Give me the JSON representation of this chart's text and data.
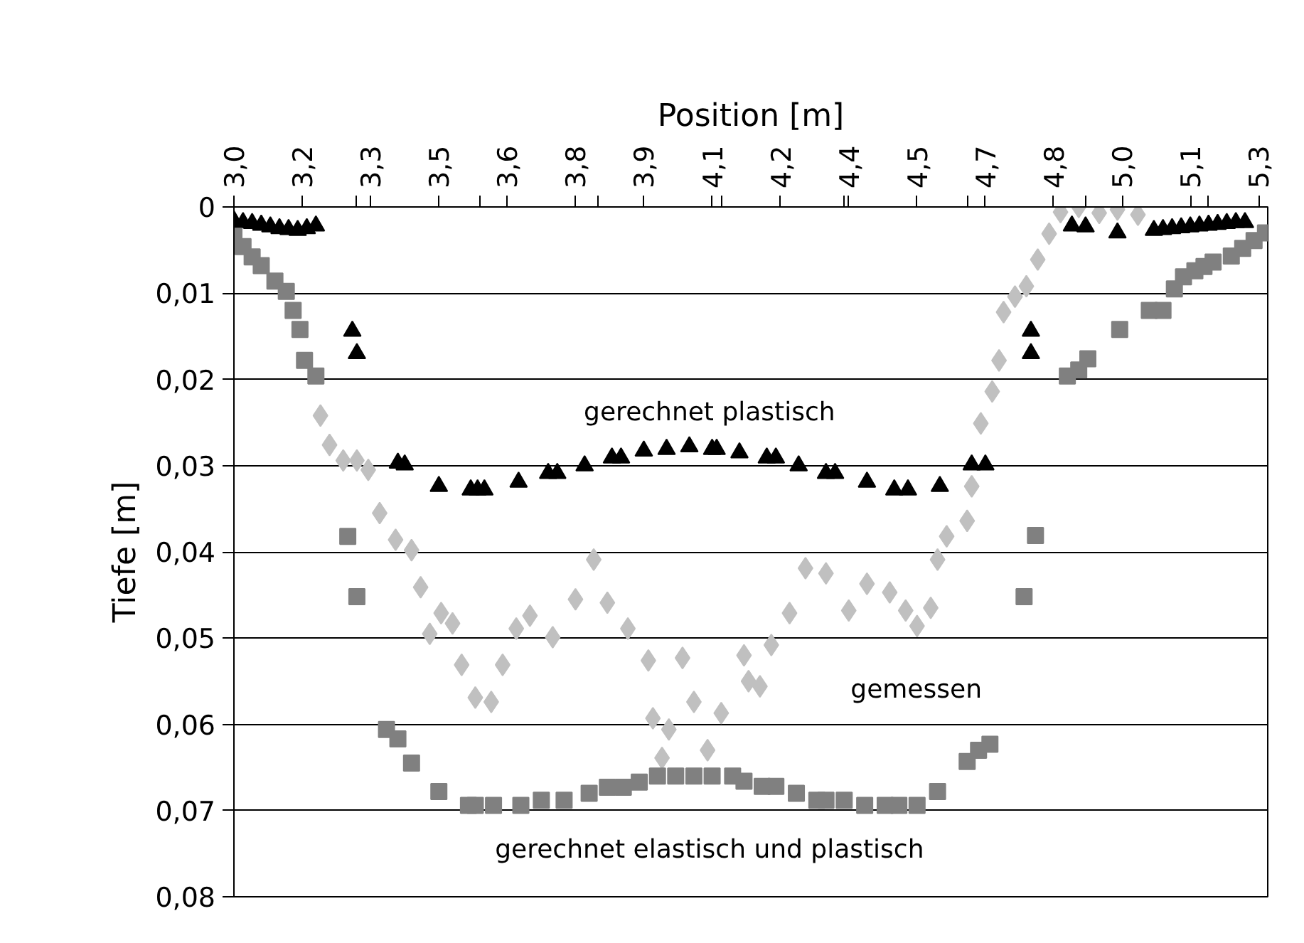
{
  "chart_data": {
    "type": "scatter",
    "xlabel": "Position [m]",
    "ylabel": "Tiefe [m]",
    "xlim": [
      3.0,
      5.27
    ],
    "ylim": [
      0.08,
      0
    ],
    "xticks": [
      {
        "value": 3.0,
        "label": "3,0"
      },
      {
        "value": 3.15,
        "label": "3,2"
      },
      {
        "value": 3.3,
        "label": "3,3"
      },
      {
        "value": 3.45,
        "label": "3,5"
      },
      {
        "value": 3.6,
        "label": "3,6"
      },
      {
        "value": 3.75,
        "label": "3,8"
      },
      {
        "value": 3.9,
        "label": "3,9"
      },
      {
        "value": 4.05,
        "label": "4,1"
      },
      {
        "value": 4.2,
        "label": "4,2"
      },
      {
        "value": 4.35,
        "label": "4,4"
      },
      {
        "value": 4.5,
        "label": "4,5"
      },
      {
        "value": 4.65,
        "label": "4,7"
      },
      {
        "value": 4.8,
        "label": "4,8"
      },
      {
        "value": 4.95,
        "label": "5,0"
      },
      {
        "value": 5.1,
        "label": "5,1"
      },
      {
        "value": 5.25,
        "label": "5,3"
      },
      {
        "value": 3.27,
        "label": null
      },
      {
        "value": 3.54,
        "label": null
      },
      {
        "value": 3.8,
        "label": null
      },
      {
        "value": 4.07,
        "label": null
      },
      {
        "value": 4.34,
        "label": null
      },
      {
        "value": 4.61,
        "label": null
      },
      {
        "value": 4.87,
        "label": null
      },
      {
        "value": 5.14,
        "label": null
      }
    ],
    "yticks": [
      0,
      {
        "value": 0.01,
        "label": "0,01"
      },
      {
        "value": 0.02,
        "label": "0,02"
      },
      {
        "value": 0.03,
        "label": "0,03"
      },
      {
        "value": 0.04,
        "label": "0,04"
      },
      {
        "value": 0.05,
        "label": "0,05"
      },
      {
        "value": 0.06,
        "label": "0,06"
      },
      {
        "value": 0.07,
        "label": "0,07"
      },
      {
        "value": 0.08,
        "label": "0,08"
      }
    ],
    "grid": "y",
    "series": [
      {
        "name": "gemessen",
        "color": "#c0c0c0",
        "marker": "diamond",
        "x": [
          3.19,
          3.21,
          3.24,
          3.27,
          3.295,
          3.32,
          3.355,
          3.39,
          3.41,
          3.43,
          3.455,
          3.48,
          3.5,
          3.53,
          3.565,
          3.59,
          3.62,
          3.65,
          3.7,
          3.75,
          3.79,
          3.82,
          3.865,
          3.91,
          3.92,
          3.94,
          3.955,
          3.985,
          4.01,
          4.04,
          4.07,
          4.12,
          4.13,
          4.155,
          4.18,
          4.22,
          4.255,
          4.3,
          4.35,
          4.39,
          4.44,
          4.475,
          4.5,
          4.53,
          4.545,
          4.565,
          4.61,
          4.62,
          4.64,
          4.665,
          4.68,
          4.69,
          4.715,
          4.74,
          4.765,
          4.79,
          4.815,
          4.855,
          4.9,
          4.94,
          4.985
        ],
        "values": [
          0.0242,
          0.0276,
          0.0294,
          0.0294,
          0.0305,
          0.0355,
          0.0386,
          0.0398,
          0.0441,
          0.0495,
          0.0471,
          0.0483,
          0.0531,
          0.0569,
          0.0574,
          0.0531,
          0.0489,
          0.0474,
          0.0499,
          0.0455,
          0.0409,
          0.0459,
          0.0489,
          0.0526,
          0.0593,
          0.0639,
          0.0606,
          0.0523,
          0.0574,
          0.063,
          0.0587,
          0.052,
          0.055,
          0.0556,
          0.0508,
          0.0471,
          0.0419,
          0.0425,
          0.0468,
          0.0437,
          0.0447,
          0.0468,
          0.0486,
          0.0465,
          0.0409,
          0.0382,
          0.0364,
          0.0324,
          0.0251,
          0.0214,
          0.0178,
          0.0122,
          0.0104,
          0.0092,
          0.0061,
          0.0031,
          0.0006,
          0.0,
          0.0007,
          0.0003,
          0.0009
        ]
      },
      {
        "name": "gerechnet plastisch",
        "color": "#000000",
        "marker": "triangle",
        "x": [
          3.0,
          3.02,
          3.04,
          3.06,
          3.08,
          3.1,
          3.12,
          3.14,
          3.16,
          3.18,
          3.26,
          3.27,
          3.36,
          3.375,
          3.45,
          3.52,
          3.535,
          3.55,
          3.625,
          3.69,
          3.71,
          3.77,
          3.83,
          3.85,
          3.9,
          3.95,
          4.0,
          4.05,
          4.06,
          4.11,
          4.17,
          4.19,
          4.24,
          4.3,
          4.32,
          4.39,
          4.45,
          4.48,
          4.55,
          4.62,
          4.65,
          4.75,
          4.75,
          4.84,
          4.87,
          4.94,
          5.02,
          5.04,
          5.06,
          5.08,
          5.1,
          5.12,
          5.14,
          5.16,
          5.18,
          5.2,
          5.22
        ],
        "values": [
          0.0016,
          0.0018,
          0.0019,
          0.0021,
          0.0023,
          0.0025,
          0.0026,
          0.0027,
          0.0025,
          0.0022,
          0.0144,
          0.017,
          0.0297,
          0.0299,
          0.0324,
          0.0328,
          0.0328,
          0.0328,
          0.0319,
          0.0309,
          0.0309,
          0.03,
          0.0291,
          0.0291,
          0.0283,
          0.0281,
          0.0278,
          0.0281,
          0.0281,
          0.0285,
          0.0291,
          0.0291,
          0.03,
          0.0309,
          0.0309,
          0.0319,
          0.0328,
          0.0328,
          0.0324,
          0.0299,
          0.0299,
          0.0144,
          0.017,
          0.0022,
          0.0023,
          0.003,
          0.0027,
          0.0026,
          0.0025,
          0.0024,
          0.0023,
          0.0022,
          0.0021,
          0.002,
          0.0019,
          0.0018,
          0.0018
        ]
      },
      {
        "name": "gerechnet elastisch und plastisch",
        "color": "#808080",
        "marker": "square",
        "x": [
          3.0,
          3.02,
          3.04,
          3.06,
          3.09,
          3.115,
          3.13,
          3.145,
          3.155,
          3.18,
          3.25,
          3.27,
          3.335,
          3.36,
          3.39,
          3.45,
          3.515,
          3.53,
          3.57,
          3.63,
          3.675,
          3.725,
          3.78,
          3.82,
          3.855,
          3.89,
          3.93,
          3.97,
          4.01,
          4.05,
          4.095,
          4.12,
          4.16,
          4.19,
          4.235,
          4.28,
          4.3,
          4.34,
          4.385,
          4.43,
          4.46,
          4.5,
          4.545,
          4.61,
          4.635,
          4.66,
          4.735,
          4.76,
          4.83,
          4.855,
          4.875,
          4.945,
          5.01,
          5.04,
          5.065,
          5.085,
          5.11,
          5.13,
          5.15,
          5.19,
          5.215,
          5.24,
          5.265
        ],
        "values": [
          0.0034,
          0.0046,
          0.0058,
          0.0068,
          0.0086,
          0.0098,
          0.012,
          0.0142,
          0.0178,
          0.0196,
          0.0382,
          0.0452,
          0.0606,
          0.0617,
          0.0645,
          0.0678,
          0.0694,
          0.0694,
          0.0694,
          0.0694,
          0.0688,
          0.0688,
          0.068,
          0.0673,
          0.0673,
          0.0667,
          0.066,
          0.066,
          0.066,
          0.066,
          0.066,
          0.0666,
          0.0672,
          0.0672,
          0.068,
          0.0688,
          0.0688,
          0.0688,
          0.0694,
          0.0694,
          0.0694,
          0.0694,
          0.0678,
          0.0643,
          0.063,
          0.0623,
          0.0452,
          0.0381,
          0.0196,
          0.0189,
          0.0176,
          0.0142,
          0.012,
          0.012,
          0.0095,
          0.0081,
          0.0074,
          0.0069,
          0.0064,
          0.0057,
          0.0048,
          0.0039,
          0.003
        ]
      }
    ]
  }
}
